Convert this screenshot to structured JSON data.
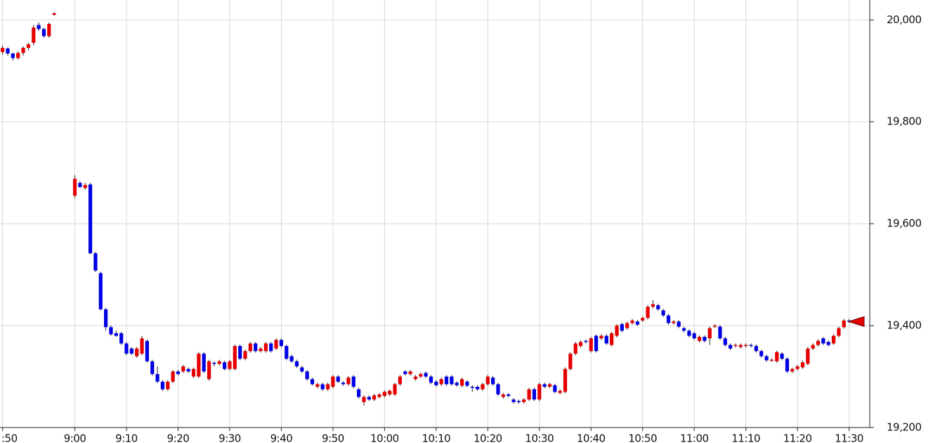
{
  "chart_data": {
    "type": "candlestick",
    "up_color": "#e60000",
    "down_color": "#0000e6",
    "xlim": [
      -0.5,
      168
    ],
    "ylim": [
      19200,
      20039
    ],
    "grid": true,
    "xticks": [
      {
        "value": 0,
        "label": ":50"
      },
      {
        "value": 14,
        "label": "9:00"
      },
      {
        "value": 24,
        "label": "9:10"
      },
      {
        "value": 34,
        "label": "9:20"
      },
      {
        "value": 44,
        "label": "9:30"
      },
      {
        "value": 54,
        "label": "9:40"
      },
      {
        "value": 64,
        "label": "9:50"
      },
      {
        "value": 74,
        "label": "10:00"
      },
      {
        "value": 84,
        "label": "10:10"
      },
      {
        "value": 94,
        "label": "10:20"
      },
      {
        "value": 104,
        "label": "10:30"
      },
      {
        "value": 114,
        "label": "10:40"
      },
      {
        "value": 124,
        "label": "10:50"
      },
      {
        "value": 134,
        "label": "11:00"
      },
      {
        "value": 144,
        "label": "11:10"
      },
      {
        "value": 154,
        "label": "11:20"
      },
      {
        "value": 164,
        "label": "11:30"
      }
    ],
    "yticks": [
      {
        "value": 19200,
        "label": "19,200"
      },
      {
        "value": 19400,
        "label": "19,400"
      },
      {
        "value": 19600,
        "label": "19,600"
      },
      {
        "value": 19800,
        "label": "19,800"
      },
      {
        "value": 20000,
        "label": "20,000"
      }
    ],
    "x": [
      0,
      1,
      2,
      3,
      4,
      5,
      6,
      7,
      8,
      9,
      10,
      14,
      15,
      16,
      17,
      18,
      19,
      20,
      21,
      22,
      23,
      24,
      25,
      26,
      27,
      28,
      29,
      30,
      31,
      32,
      33,
      34,
      35,
      36,
      37,
      38,
      39,
      40,
      41,
      42,
      43,
      44,
      45,
      46,
      47,
      48,
      49,
      50,
      51,
      52,
      53,
      54,
      55,
      56,
      57,
      58,
      59,
      60,
      61,
      62,
      63,
      64,
      65,
      66,
      67,
      68,
      69,
      70,
      71,
      72,
      73,
      74,
      75,
      76,
      77,
      78,
      79,
      80,
      81,
      82,
      83,
      84,
      85,
      86,
      87,
      88,
      89,
      90,
      91,
      92,
      93,
      94,
      95,
      96,
      97,
      98,
      99,
      100,
      101,
      102,
      103,
      104,
      105,
      106,
      107,
      108,
      109,
      110,
      111,
      112,
      113,
      114,
      115,
      116,
      117,
      118,
      119,
      120,
      121,
      122,
      123,
      124,
      125,
      126,
      127,
      128,
      129,
      130,
      131,
      132,
      133,
      134,
      135,
      136,
      137,
      138,
      139,
      140,
      141,
      142,
      143,
      144,
      145,
      146,
      147,
      148,
      149,
      150,
      151,
      152,
      153,
      154,
      155,
      156,
      157,
      158,
      159,
      160,
      161,
      162,
      163,
      164
    ],
    "ohlc": [
      [
        19937,
        19950,
        19932,
        19945
      ],
      [
        19944,
        19946,
        19930,
        19934
      ],
      [
        19934,
        19936,
        19920,
        19925
      ],
      [
        19925,
        19938,
        19922,
        19935
      ],
      [
        19935,
        19948,
        19930,
        19945
      ],
      [
        19945,
        19955,
        19940,
        19952
      ],
      [
        19955,
        19990,
        19950,
        19985
      ],
      [
        19990,
        19995,
        19978,
        19982
      ],
      [
        19982,
        19985,
        19965,
        19968
      ],
      [
        19968,
        19995,
        19965,
        19992
      ],
      [
        20010,
        20015,
        20008,
        20013
      ],
      [
        19655,
        19695,
        19650,
        19688
      ],
      [
        19680,
        19684,
        19670,
        19672
      ],
      [
        19670,
        19680,
        19667,
        19676
      ],
      [
        19677,
        19680,
        19540,
        19542
      ],
      [
        19542,
        19545,
        19505,
        19508
      ],
      [
        19503,
        19506,
        19430,
        19432
      ],
      [
        19432,
        19435,
        19390,
        19397
      ],
      [
        19397,
        19400,
        19380,
        19383
      ],
      [
        19385,
        19390,
        19378,
        19380
      ],
      [
        19385,
        19388,
        19362,
        19365
      ],
      [
        19365,
        19368,
        19342,
        19345
      ],
      [
        19355,
        19358,
        19342,
        19345
      ],
      [
        19340,
        19358,
        19337,
        19355
      ],
      [
        19345,
        19380,
        19342,
        19375
      ],
      [
        19370,
        19373,
        19327,
        19330
      ],
      [
        19330,
        19333,
        19302,
        19305
      ],
      [
        19305,
        19320,
        19287,
        19290
      ],
      [
        19290,
        19293,
        19272,
        19275
      ],
      [
        19275,
        19293,
        19272,
        19290
      ],
      [
        19290,
        19313,
        19287,
        19310
      ],
      [
        19310,
        19313,
        19302,
        19305
      ],
      [
        19310,
        19323,
        19307,
        19320
      ],
      [
        19315,
        19318,
        19307,
        19310
      ],
      [
        19300,
        19318,
        19297,
        19315
      ],
      [
        19300,
        19348,
        19297,
        19345
      ],
      [
        19345,
        19348,
        19307,
        19310
      ],
      [
        19295,
        19333,
        19292,
        19330
      ],
      [
        19327,
        19330,
        19320,
        19325
      ],
      [
        19325,
        19333,
        19322,
        19330
      ],
      [
        19328,
        19331,
        19312,
        19315
      ],
      [
        19315,
        19333,
        19312,
        19330
      ],
      [
        19315,
        19363,
        19312,
        19360
      ],
      [
        19360,
        19363,
        19332,
        19335
      ],
      [
        19335,
        19353,
        19332,
        19350
      ],
      [
        19350,
        19368,
        19347,
        19365
      ],
      [
        19365,
        19368,
        19347,
        19350
      ],
      [
        19350,
        19358,
        19347,
        19355
      ],
      [
        19350,
        19368,
        19347,
        19365
      ],
      [
        19365,
        19368,
        19347,
        19350
      ],
      [
        19355,
        19375,
        19352,
        19372
      ],
      [
        19372,
        19375,
        19357,
        19360
      ],
      [
        19360,
        19363,
        19332,
        19335
      ],
      [
        19340,
        19343,
        19327,
        19330
      ],
      [
        19330,
        19333,
        19317,
        19320
      ],
      [
        19318,
        19321,
        19307,
        19310
      ],
      [
        19310,
        19313,
        19292,
        19295
      ],
      [
        19295,
        19298,
        19282,
        19285
      ],
      [
        19280,
        19288,
        19277,
        19285
      ],
      [
        19285,
        19288,
        19272,
        19275
      ],
      [
        19275,
        19288,
        19272,
        19285
      ],
      [
        19280,
        19303,
        19277,
        19300
      ],
      [
        19300,
        19303,
        19287,
        19290
      ],
      [
        19288,
        19291,
        19282,
        19285
      ],
      [
        19285,
        19301,
        19282,
        19298
      ],
      [
        19300,
        19303,
        19277,
        19280
      ],
      [
        19275,
        19278,
        19257,
        19260
      ],
      [
        19250,
        19263,
        19243,
        19260
      ],
      [
        19260,
        19263,
        19252,
        19255
      ],
      [
        19255,
        19266,
        19252,
        19263
      ],
      [
        19260,
        19268,
        19257,
        19265
      ],
      [
        19262,
        19273,
        19259,
        19270
      ],
      [
        19265,
        19275,
        19262,
        19272
      ],
      [
        19265,
        19288,
        19262,
        19285
      ],
      [
        19285,
        19303,
        19282,
        19300
      ],
      [
        19310,
        19313,
        19302,
        19305
      ],
      [
        19305,
        19313,
        19302,
        19310
      ],
      [
        19295,
        19303,
        19292,
        19300
      ],
      [
        19300,
        19308,
        19297,
        19305
      ],
      [
        19307,
        19310,
        19297,
        19300
      ],
      [
        19300,
        19303,
        19285,
        19288
      ],
      [
        19290,
        19293,
        19280,
        19283
      ],
      [
        19285,
        19298,
        19282,
        19295
      ],
      [
        19300,
        19303,
        19282,
        19285
      ],
      [
        19300,
        19303,
        19282,
        19285
      ],
      [
        19288,
        19291,
        19280,
        19283
      ],
      [
        19282,
        19298,
        19279,
        19295
      ],
      [
        19290,
        19293,
        19279,
        19282
      ],
      [
        19280,
        19283,
        19270,
        19278
      ],
      [
        19280,
        19283,
        19272,
        19275
      ],
      [
        19275,
        19288,
        19272,
        19285
      ],
      [
        19285,
        19303,
        19282,
        19300
      ],
      [
        19298,
        19301,
        19282,
        19285
      ],
      [
        19285,
        19288,
        19262,
        19265
      ],
      [
        19260,
        19268,
        19257,
        19265
      ],
      [
        19265,
        19268,
        19259,
        19262
      ],
      [
        19255,
        19258,
        19247,
        19250
      ],
      [
        19252,
        19255,
        19247,
        19250
      ],
      [
        19250,
        19258,
        19247,
        19255
      ],
      [
        19255,
        19278,
        19252,
        19275
      ],
      [
        19275,
        19278,
        19252,
        19255
      ],
      [
        19255,
        19288,
        19252,
        19285
      ],
      [
        19285,
        19288,
        19277,
        19280
      ],
      [
        19280,
        19288,
        19277,
        19285
      ],
      [
        19283,
        19286,
        19267,
        19270
      ],
      [
        19268,
        19275,
        19265,
        19272
      ],
      [
        19270,
        19318,
        19267,
        19315
      ],
      [
        19315,
        19348,
        19312,
        19345
      ],
      [
        19345,
        19368,
        19342,
        19365
      ],
      [
        19360,
        19371,
        19357,
        19368
      ],
      [
        19370,
        19373,
        19365,
        19368
      ],
      [
        19350,
        19378,
        19347,
        19375
      ],
      [
        19380,
        19383,
        19347,
        19350
      ],
      [
        19375,
        19383,
        19372,
        19380
      ],
      [
        19380,
        19383,
        19362,
        19365
      ],
      [
        19362,
        19388,
        19359,
        19385
      ],
      [
        19380,
        19403,
        19377,
        19400
      ],
      [
        19403,
        19406,
        19387,
        19390
      ],
      [
        19395,
        19408,
        19392,
        19405
      ],
      [
        19405,
        19413,
        19402,
        19410
      ],
      [
        19408,
        19411,
        19399,
        19402
      ],
      [
        19410,
        19418,
        19407,
        19415
      ],
      [
        19415,
        19440,
        19412,
        19437
      ],
      [
        19437,
        19450,
        19434,
        19442
      ],
      [
        19440,
        19443,
        19429,
        19432
      ],
      [
        19430,
        19433,
        19417,
        19420
      ],
      [
        19420,
        19423,
        19402,
        19405
      ],
      [
        19405,
        19411,
        19402,
        19408
      ],
      [
        19408,
        19411,
        19395,
        19398
      ],
      [
        19395,
        19398,
        19387,
        19390
      ],
      [
        19390,
        19393,
        19377,
        19380
      ],
      [
        19385,
        19388,
        19372,
        19375
      ],
      [
        19370,
        19381,
        19367,
        19378
      ],
      [
        19378,
        19381,
        19367,
        19370
      ],
      [
        19375,
        19398,
        19362,
        19395
      ],
      [
        19398,
        19403,
        19395,
        19400
      ],
      [
        19398,
        19401,
        19372,
        19375
      ],
      [
        19375,
        19378,
        19359,
        19362
      ],
      [
        19362,
        19365,
        19352,
        19355
      ],
      [
        19360,
        19365,
        19357,
        19362
      ],
      [
        19358,
        19365,
        19355,
        19362
      ],
      [
        19360,
        19365,
        19357,
        19362
      ],
      [
        19362,
        19365,
        19357,
        19360
      ],
      [
        19360,
        19363,
        19347,
        19350
      ],
      [
        19350,
        19353,
        19337,
        19340
      ],
      [
        19340,
        19343,
        19329,
        19332
      ],
      [
        19332,
        19336,
        19329,
        19333
      ],
      [
        19330,
        19351,
        19327,
        19348
      ],
      [
        19345,
        19348,
        19332,
        19335
      ],
      [
        19335,
        19338,
        19307,
        19310
      ],
      [
        19310,
        19318,
        19307,
        19315
      ],
      [
        19315,
        19323,
        19312,
        19320
      ],
      [
        19318,
        19331,
        19315,
        19328
      ],
      [
        19325,
        19358,
        19322,
        19355
      ],
      [
        19355,
        19365,
        19352,
        19362
      ],
      [
        19362,
        19373,
        19359,
        19370
      ],
      [
        19375,
        19378,
        19362,
        19365
      ],
      [
        19368,
        19371,
        19359,
        19362
      ],
      [
        19365,
        19383,
        19362,
        19380
      ],
      [
        19380,
        19398,
        19377,
        19395
      ],
      [
        19397,
        19413,
        19394,
        19410
      ],
      [
        19410,
        19413,
        19405,
        19408
      ]
    ]
  }
}
